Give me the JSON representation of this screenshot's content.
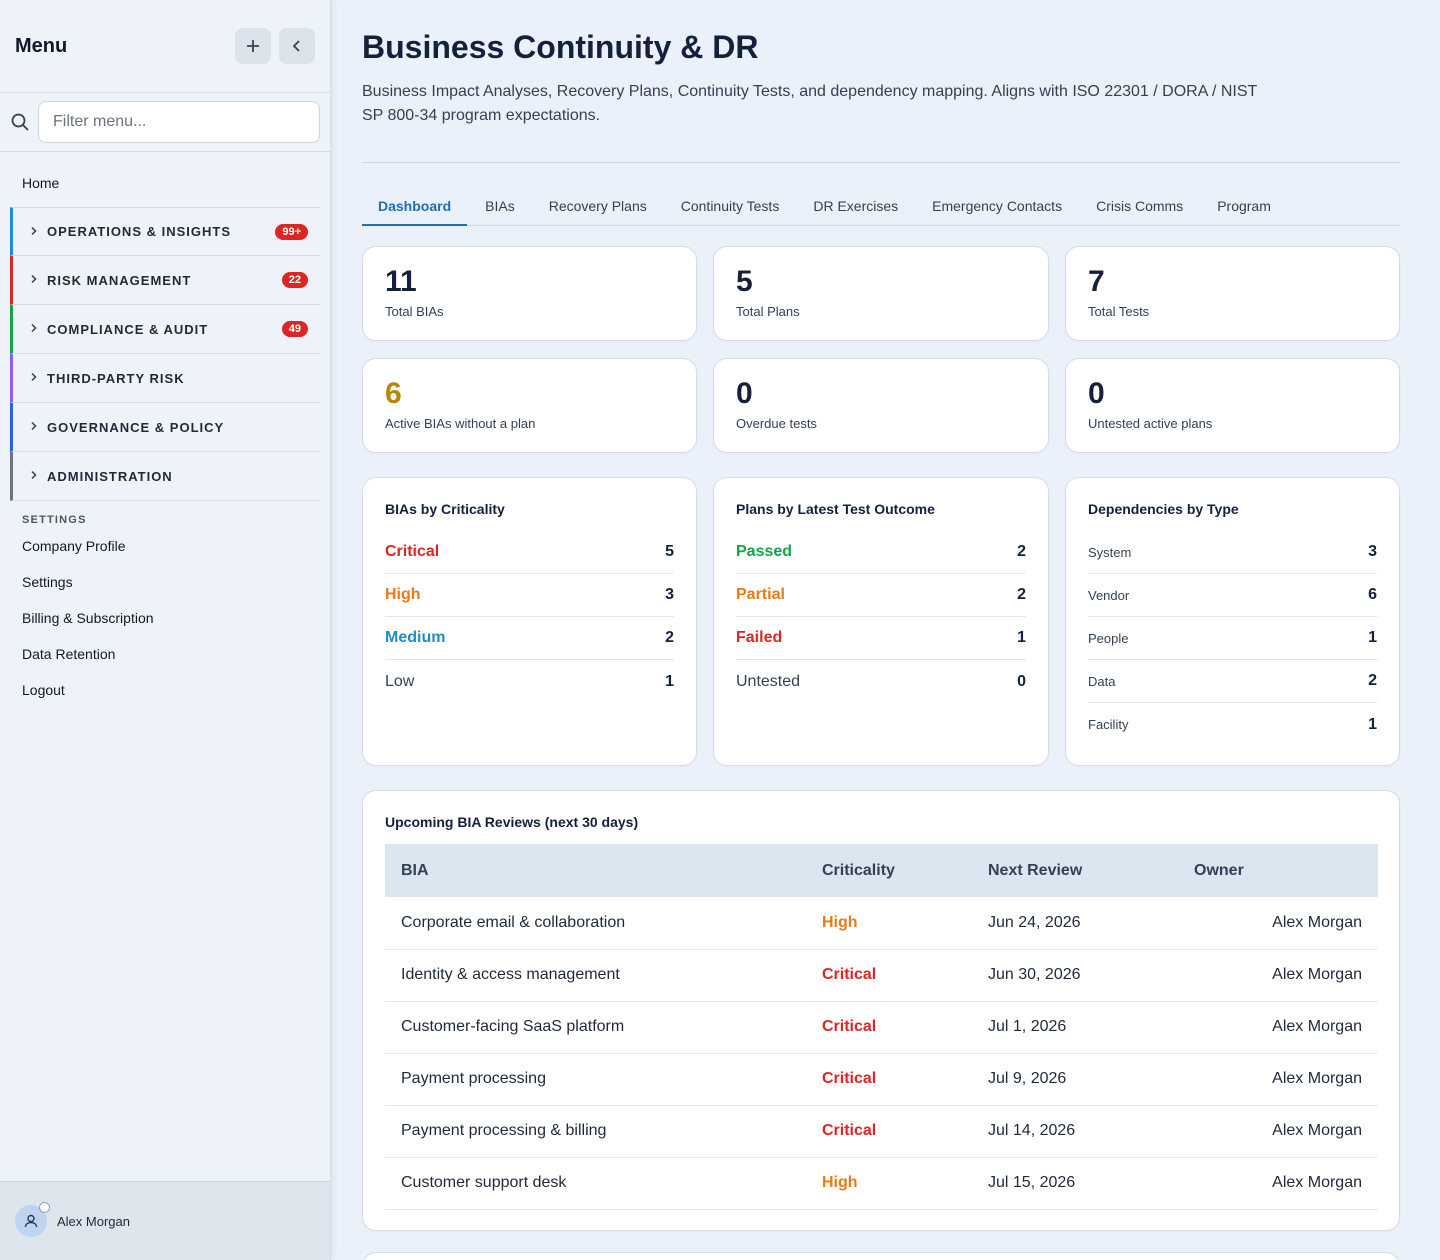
{
  "sidebar": {
    "title": "Menu",
    "search_placeholder": "Filter menu...",
    "home": "Home",
    "sections": [
      {
        "label": "OPERATIONS & INSIGHTS",
        "badge": "99+",
        "color": "#1d8fd6"
      },
      {
        "label": "RISK MANAGEMENT",
        "badge": "22",
        "color": "#dc2626"
      },
      {
        "label": "COMPLIANCE & AUDIT",
        "badge": "49",
        "color": "#16a34a"
      },
      {
        "label": "THIRD-PARTY RISK",
        "badge": "",
        "color": "#8b5cf6"
      },
      {
        "label": "GOVERNANCE & POLICY",
        "badge": "",
        "color": "#2563eb"
      },
      {
        "label": "ADMINISTRATION",
        "badge": "",
        "color": "#6b7280"
      }
    ],
    "settings_heading": "SETTINGS",
    "settings_links": [
      "Company Profile",
      "Settings",
      "Billing & Subscription",
      "Data Retention",
      "Logout"
    ],
    "user_name": "Alex Morgan"
  },
  "page": {
    "title": "Business Continuity & DR",
    "description": "Business Impact Analyses, Recovery Plans, Continuity Tests, and dependency mapping. Aligns with ISO 22301 / DORA / NIST SP 800-34 program expectations."
  },
  "tabs": [
    "Dashboard",
    "BIAs",
    "Recovery Plans",
    "Continuity Tests",
    "DR Exercises",
    "Emergency Contacts",
    "Crisis Comms",
    "Program"
  ],
  "stats": [
    {
      "value": "11",
      "label": "Total BIAs",
      "color": "#14213d"
    },
    {
      "value": "5",
      "label": "Total Plans",
      "color": "#14213d"
    },
    {
      "value": "7",
      "label": "Total Tests",
      "color": "#14213d"
    },
    {
      "value": "6",
      "label": "Active BIAs without a plan",
      "color": "#b8860b"
    },
    {
      "value": "0",
      "label": "Overdue tests",
      "color": "#14213d"
    },
    {
      "value": "0",
      "label": "Untested active plans",
      "color": "#14213d"
    }
  ],
  "criticality": {
    "title": "BIAs by Criticality",
    "rows": [
      {
        "label": "Critical",
        "value": "5",
        "color": "#dc2626"
      },
      {
        "label": "High",
        "value": "3",
        "color": "#ea7a14"
      },
      {
        "label": "Medium",
        "value": "2",
        "color": "#1d8fc4"
      },
      {
        "label": "Low",
        "value": "1",
        "color": "#334155"
      }
    ]
  },
  "outcomes": {
    "title": "Plans by Latest Test Outcome",
    "rows": [
      {
        "label": "Passed",
        "value": "2",
        "color": "#16a34a"
      },
      {
        "label": "Partial",
        "value": "2",
        "color": "#ea7a14"
      },
      {
        "label": "Failed",
        "value": "1",
        "color": "#dc2626"
      },
      {
        "label": "Untested",
        "value": "0",
        "color": "#334155"
      }
    ]
  },
  "dependencies": {
    "title": "Dependencies by Type",
    "rows": [
      {
        "label": "System",
        "value": "3"
      },
      {
        "label": "Vendor",
        "value": "6"
      },
      {
        "label": "People",
        "value": "1"
      },
      {
        "label": "Data",
        "value": "2"
      },
      {
        "label": "Facility",
        "value": "1"
      }
    ]
  },
  "reviews": {
    "title": "Upcoming BIA Reviews (next 30 days)",
    "columns": [
      "BIA",
      "Criticality",
      "Next Review",
      "Owner"
    ],
    "rows": [
      {
        "bia": "Corporate email & collaboration",
        "criticality": "High",
        "next_review": "Jun 24, 2026",
        "owner": "Alex Morgan"
      },
      {
        "bia": "Identity & access management",
        "criticality": "Critical",
        "next_review": "Jun 30, 2026",
        "owner": "Alex Morgan"
      },
      {
        "bia": "Customer-facing SaaS platform",
        "criticality": "Critical",
        "next_review": "Jul 1, 2026",
        "owner": "Alex Morgan"
      },
      {
        "bia": "Payment processing",
        "criticality": "Critical",
        "next_review": "Jul 9, 2026",
        "owner": "Alex Morgan"
      },
      {
        "bia": "Payment processing & billing",
        "criticality": "Critical",
        "next_review": "Jul 14, 2026",
        "owner": "Alex Morgan"
      },
      {
        "bia": "Customer support desk",
        "criticality": "High",
        "next_review": "Jul 15, 2026",
        "owner": "Alex Morgan"
      }
    ],
    "criticality_colors": {
      "Critical": "#dc2626",
      "High": "#ea7a14"
    }
  }
}
